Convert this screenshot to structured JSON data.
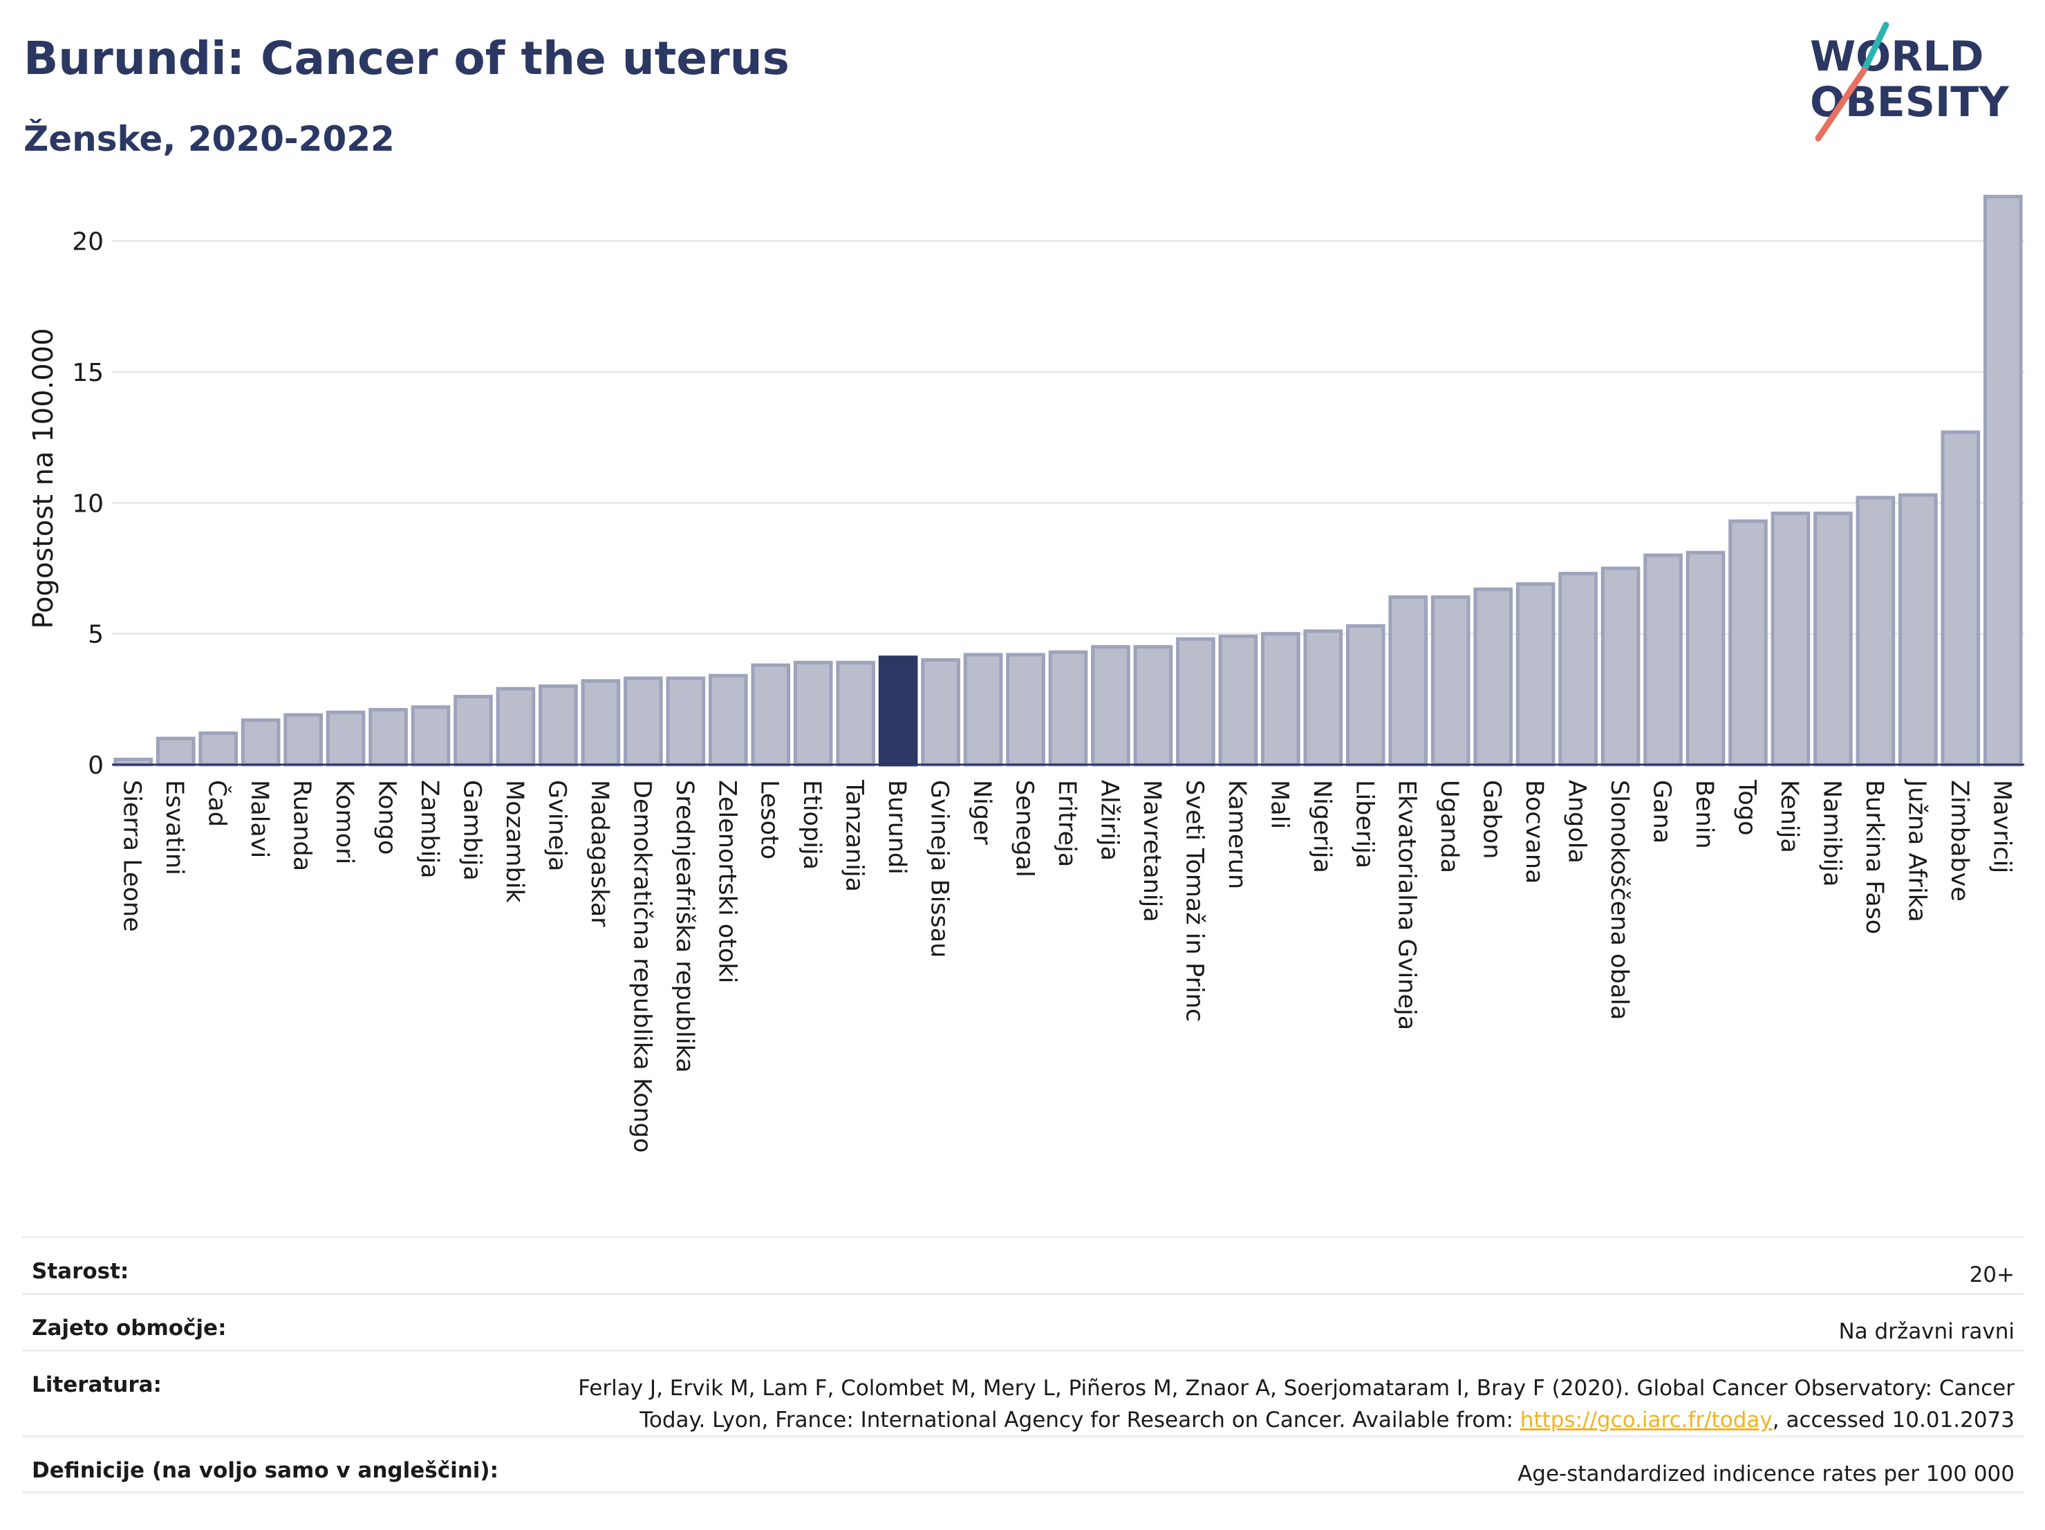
{
  "header": {
    "title": "Burundi: Cancer of the uterus",
    "subtitle": "Ženske, 2020-2022"
  },
  "logo": {
    "line1": "WORLD",
    "line2": "OBESITY"
  },
  "chart_data": {
    "type": "bar",
    "ylabel": "Pogostost na 100.000",
    "xlabel": "",
    "ylim": [
      0,
      22.5
    ],
    "yticks": [
      0,
      5,
      10,
      15,
      20
    ],
    "grid": true,
    "highlight": "Burundi",
    "colors": {
      "bar": "#b9bdcc",
      "bar_edge": "#9da3bb",
      "highlight": "#2b3863"
    },
    "categories": [
      "Sierra Leone",
      "Esvatini",
      "Čad",
      "Malavi",
      "Ruanda",
      "Komori",
      "Kongo",
      "Zambija",
      "Gambija",
      "Mozambik",
      "Gvineja",
      "Madagaskar",
      "Demokratična republika Kongo",
      "Srednjeafriška republika",
      "Zelenortski otoki",
      "Lesoto",
      "Etiopija",
      "Tanzanija",
      "Burundi",
      "Gvineja Bissau",
      "Niger",
      "Senegal",
      "Eritreja",
      "Alžirija",
      "Mavretanija",
      "Sveti Tomaž in Princ",
      "Kamerun",
      "Mali",
      "Nigerija",
      "Liberija",
      "Ekvatorialna Gvineja",
      "Uganda",
      "Gabon",
      "Bocvana",
      "Angola",
      "Slonokoščena obala",
      "Gana",
      "Benin",
      "Togo",
      "Kenija",
      "Namibija",
      "Burkina Faso",
      "Južna Afrika",
      "Zimbabve",
      "Mavricij"
    ],
    "values": [
      0.2,
      1.0,
      1.2,
      1.7,
      1.9,
      2.0,
      2.1,
      2.2,
      2.6,
      2.9,
      3.0,
      3.2,
      3.3,
      3.3,
      3.4,
      3.8,
      3.9,
      3.9,
      4.1,
      4.0,
      4.2,
      4.2,
      4.3,
      4.5,
      4.5,
      4.8,
      4.9,
      5.0,
      5.1,
      5.3,
      6.4,
      6.4,
      6.7,
      6.9,
      7.3,
      7.5,
      8.0,
      8.1,
      9.3,
      9.6,
      9.6,
      10.2,
      10.3,
      12.7,
      21.7
    ]
  },
  "meta": {
    "age_label": "Starost:",
    "age_value": "20+",
    "area_label": "Zajeto območje:",
    "area_value": "Na državni ravni",
    "ref_label": "Literatura:",
    "ref_text": "Ferlay J, Ervik M, Lam F, Colombet M, Mery L, Piñeros M, Znaor A, Soerjomataram I, Bray F (2020). Global Cancer Observatory: Cancer Today. Lyon, France: International Agency for Research on Cancer. Available from: ",
    "ref_link": "https://gco.iarc.fr/today",
    "ref_suffix": ", accessed 10.01.2073",
    "def_label": "Definicije (na voljo samo v angleščini):",
    "def_value": "Age-standardized indicence rates per 100 000"
  }
}
